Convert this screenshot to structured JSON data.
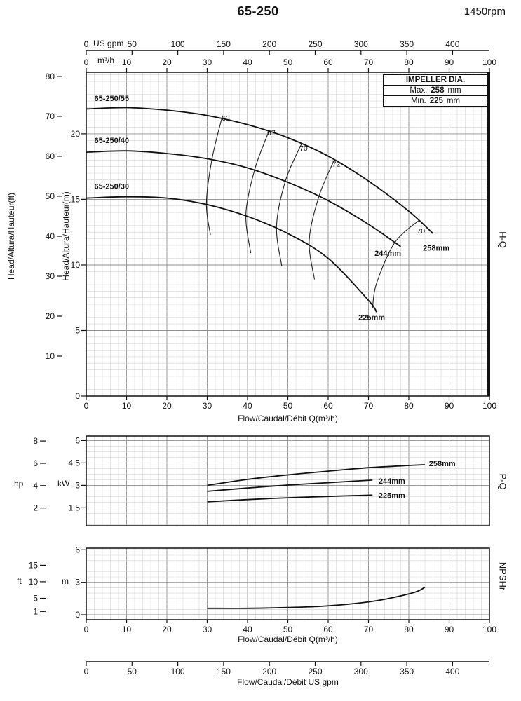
{
  "header": {
    "title": "65-250",
    "rpm": "1450rpm"
  },
  "impeller_box": {
    "title": "IMPELLER DIA.",
    "rows": [
      {
        "label": "Max.",
        "number": "258",
        "unit": "mm"
      },
      {
        "label": "Min.",
        "number": "225",
        "unit": "mm"
      }
    ]
  },
  "side_labels": {
    "hq": "H-Q",
    "pq": "P-Q",
    "npshr": "NPSHr",
    "head_ft": "Head/Altura/Hauteur(ft)",
    "head_m": "Head/Altura/Hauteur(m)",
    "hp": "hp",
    "kw": "kW",
    "ft": "ft",
    "m": "m"
  },
  "axes": {
    "top_usgpm": {
      "unit": "US gpm",
      "ticks": [
        0,
        50,
        100,
        150,
        200,
        250,
        300,
        350,
        400
      ]
    },
    "top_m3h": {
      "unit": "m³/h",
      "ticks": [
        0,
        10,
        20,
        30,
        40,
        50,
        60,
        70,
        80,
        90,
        100
      ]
    },
    "flow_caption": "Flow/Caudal/Débit Q(m³/h)",
    "bottom_usgpm": {
      "caption": "Flow/Caudal/Débit  US gpm",
      "ticks": [
        0,
        50,
        100,
        150,
        200,
        250,
        300,
        350,
        400
      ]
    }
  },
  "chart_data": [
    {
      "id": "hq",
      "type": "line",
      "xlabel": "Flow/Caudal/Débit Q(m³/h)",
      "ylabel": "Head/Altura/Hauteur(m)",
      "xlim": [
        0,
        100
      ],
      "ylim": [
        0,
        24.7
      ],
      "x_ticks": [
        0,
        10,
        20,
        30,
        40,
        50,
        60,
        70,
        80,
        90,
        100
      ],
      "y_ticks_m": [
        0,
        5,
        10,
        15,
        20
      ],
      "y_ticks_ft": [
        10,
        20,
        30,
        40,
        50,
        60,
        70,
        80
      ],
      "series": [
        {
          "name": "65-250/55",
          "impeller": "258mm",
          "points": [
            [
              0,
              21.9
            ],
            [
              10,
              22.0
            ],
            [
              20,
              21.8
            ],
            [
              30,
              21.4
            ],
            [
              40,
              20.7
            ],
            [
              50,
              19.7
            ],
            [
              60,
              18.3
            ],
            [
              70,
              16.4
            ],
            [
              80,
              14.1
            ],
            [
              86,
              12.4
            ]
          ]
        },
        {
          "name": "65-250/40",
          "impeller": "244mm",
          "points": [
            [
              0,
              18.6
            ],
            [
              10,
              18.7
            ],
            [
              20,
              18.5
            ],
            [
              30,
              18.1
            ],
            [
              40,
              17.4
            ],
            [
              50,
              16.3
            ],
            [
              60,
              14.9
            ],
            [
              70,
              13.1
            ],
            [
              78,
              11.4
            ]
          ]
        },
        {
          "name": "65-250/30",
          "impeller": "225mm",
          "points": [
            [
              0,
              15.1
            ],
            [
              10,
              15.2
            ],
            [
              20,
              15.1
            ],
            [
              30,
              14.6
            ],
            [
              40,
              13.7
            ],
            [
              50,
              12.4
            ],
            [
              60,
              10.5
            ],
            [
              70,
              7.3
            ],
            [
              72,
              6.4
            ]
          ]
        }
      ],
      "efficiency_contours": [
        {
          "value": 63,
          "points": [
            [
              33.8,
              21.4
            ],
            [
              31.2,
              18.1
            ],
            [
              29.8,
              14.7
            ],
            [
              30.8,
              12.3
            ]
          ]
        },
        {
          "value": 67,
          "points": [
            [
              45.3,
              20.2
            ],
            [
              41.8,
              17.3
            ],
            [
              39.6,
              13.9
            ],
            [
              40.8,
              10.9
            ]
          ]
        },
        {
          "value": 70,
          "points": [
            [
              53.5,
              19.3
            ],
            [
              49.5,
              16.5
            ],
            [
              47.2,
              13.0
            ],
            [
              48.5,
              9.9
            ]
          ]
        },
        {
          "value": 72,
          "points": [
            [
              61.5,
              18.0
            ],
            [
              57.8,
              15.3
            ],
            [
              55.3,
              11.9
            ],
            [
              56.6,
              8.9
            ]
          ]
        },
        {
          "value": 70,
          "points": [
            [
              82.5,
              13.4
            ],
            [
              76.5,
              11.7
            ],
            [
              72.0,
              8.6
            ],
            [
              71.0,
              6.7
            ]
          ]
        }
      ],
      "annotations": [
        {
          "text": "65-250/55",
          "x": 2,
          "y": 22.5,
          "bold": true,
          "anchor": "start"
        },
        {
          "text": "65-250/40",
          "x": 2,
          "y": 19.3,
          "bold": true,
          "anchor": "start"
        },
        {
          "text": "65-250/30",
          "x": 2,
          "y": 15.8,
          "bold": true,
          "anchor": "start"
        },
        {
          "text": "63",
          "x": 34.6,
          "y": 21.0
        },
        {
          "text": "67",
          "x": 45.9,
          "y": 19.9
        },
        {
          "text": "70",
          "x": 53.9,
          "y": 18.7
        },
        {
          "text": "72",
          "x": 62,
          "y": 17.5
        },
        {
          "text": "70",
          "x": 83,
          "y": 12.4
        },
        {
          "text": "258mm",
          "x": 83.5,
          "y": 11.1,
          "bold": true,
          "anchor": "start"
        },
        {
          "text": "244mm",
          "x": 71.5,
          "y": 10.7,
          "bold": true,
          "anchor": "start"
        },
        {
          "text": "225mm",
          "x": 67.5,
          "y": 5.8,
          "bold": true,
          "anchor": "start"
        }
      ]
    },
    {
      "id": "pq",
      "type": "line",
      "ylabel": "kW",
      "xlim": [
        0,
        100
      ],
      "ylim": [
        0.3,
        6.3
      ],
      "y_ticks_kw": [
        1.5,
        3,
        4.5,
        6
      ],
      "y_ticks_hp": [
        2,
        4,
        6,
        8
      ],
      "series": [
        {
          "name": "258mm",
          "points": [
            [
              30,
              3.0
            ],
            [
              40,
              3.4
            ],
            [
              50,
              3.7
            ],
            [
              60,
              3.95
            ],
            [
              70,
              4.18
            ],
            [
              80,
              4.33
            ],
            [
              84,
              4.38
            ]
          ]
        },
        {
          "name": "244mm",
          "points": [
            [
              30,
              2.6
            ],
            [
              40,
              2.82
            ],
            [
              50,
              3.02
            ],
            [
              60,
              3.18
            ],
            [
              71,
              3.35
            ]
          ]
        },
        {
          "name": "225mm",
          "points": [
            [
              30,
              1.9
            ],
            [
              40,
              2.05
            ],
            [
              50,
              2.17
            ],
            [
              60,
              2.26
            ],
            [
              71,
              2.35
            ]
          ]
        }
      ],
      "annotations": [
        {
          "text": "258mm",
          "x": 85,
          "y": 4.28,
          "bold": true,
          "anchor": "start"
        },
        {
          "text": "244mm",
          "x": 72.5,
          "y": 3.12,
          "bold": true,
          "anchor": "start"
        },
        {
          "text": "225mm",
          "x": 72.5,
          "y": 2.15,
          "bold": true,
          "anchor": "start"
        }
      ]
    },
    {
      "id": "np",
      "type": "line",
      "xlabel": "Flow/Caudal/Débit Q(m³/h)",
      "ylabel": "m",
      "xlim": [
        0,
        100
      ],
      "ylim": [
        -0.45,
        6.15
      ],
      "x_ticks": [
        0,
        10,
        20,
        30,
        40,
        50,
        60,
        70,
        80,
        90,
        100
      ],
      "y_ticks_m": [
        0,
        3,
        6
      ],
      "y_ticks_ft": [
        1,
        5,
        10,
        15
      ],
      "series": [
        {
          "name": "NPSHr",
          "points": [
            [
              30,
              0.6
            ],
            [
              40,
              0.6
            ],
            [
              50,
              0.67
            ],
            [
              58,
              0.78
            ],
            [
              65,
              0.98
            ],
            [
              72,
              1.3
            ],
            [
              78,
              1.75
            ],
            [
              82,
              2.15
            ],
            [
              84,
              2.55
            ]
          ]
        }
      ],
      "annotations": []
    }
  ]
}
